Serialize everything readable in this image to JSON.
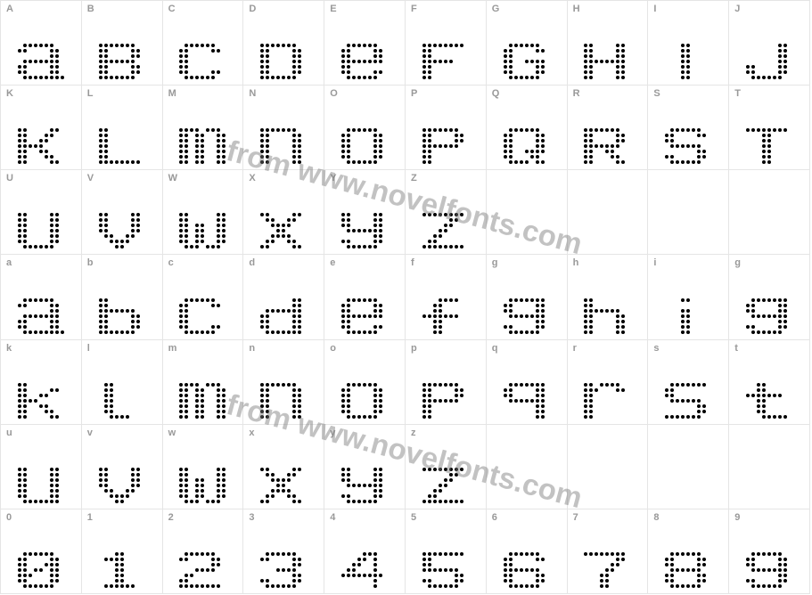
{
  "grid": {
    "cols": 10,
    "rows": 7,
    "cells": [
      {
        "label": "A",
        "glyph": "a"
      },
      {
        "label": "B",
        "glyph": "B"
      },
      {
        "label": "C",
        "glyph": "c"
      },
      {
        "label": "D",
        "glyph": "D"
      },
      {
        "label": "E",
        "glyph": "e"
      },
      {
        "label": "F",
        "glyph": "F"
      },
      {
        "label": "G",
        "glyph": "G"
      },
      {
        "label": "H",
        "glyph": "H"
      },
      {
        "label": "I",
        "glyph": "I"
      },
      {
        "label": "J",
        "glyph": "J"
      },
      {
        "label": "K",
        "glyph": "K"
      },
      {
        "label": "L",
        "glyph": "L"
      },
      {
        "label": "M",
        "glyph": "m"
      },
      {
        "label": "N",
        "glyph": "n"
      },
      {
        "label": "O",
        "glyph": "o"
      },
      {
        "label": "P",
        "glyph": "P"
      },
      {
        "label": "Q",
        "glyph": "Q"
      },
      {
        "label": "R",
        "glyph": "R"
      },
      {
        "label": "S",
        "glyph": "S"
      },
      {
        "label": "T",
        "glyph": "T"
      },
      {
        "label": "U",
        "glyph": "U"
      },
      {
        "label": "V",
        "glyph": "V"
      },
      {
        "label": "W",
        "glyph": "W"
      },
      {
        "label": "X",
        "glyph": "x"
      },
      {
        "label": "Y",
        "glyph": "y"
      },
      {
        "label": "Z",
        "glyph": "Z"
      },
      {
        "label": "",
        "glyph": ""
      },
      {
        "label": "",
        "glyph": ""
      },
      {
        "label": "",
        "glyph": ""
      },
      {
        "label": "",
        "glyph": ""
      },
      {
        "label": "a",
        "glyph": "a"
      },
      {
        "label": "b",
        "glyph": "b"
      },
      {
        "label": "c",
        "glyph": "c"
      },
      {
        "label": "d",
        "glyph": "d"
      },
      {
        "label": "e",
        "glyph": "e"
      },
      {
        "label": "f",
        "glyph": "f"
      },
      {
        "label": "g",
        "glyph": "g"
      },
      {
        "label": "h",
        "glyph": "h"
      },
      {
        "label": "i",
        "glyph": "i"
      },
      {
        "label": "g",
        "glyph": "g"
      },
      {
        "label": "k",
        "glyph": "k"
      },
      {
        "label": "l",
        "glyph": "l"
      },
      {
        "label": "m",
        "glyph": "m"
      },
      {
        "label": "n",
        "glyph": "n"
      },
      {
        "label": "o",
        "glyph": "o"
      },
      {
        "label": "p",
        "glyph": "p"
      },
      {
        "label": "q",
        "glyph": "q"
      },
      {
        "label": "r",
        "glyph": "r"
      },
      {
        "label": "s",
        "glyph": "s"
      },
      {
        "label": "t",
        "glyph": "t"
      },
      {
        "label": "u",
        "glyph": "u"
      },
      {
        "label": "v",
        "glyph": "v"
      },
      {
        "label": "w",
        "glyph": "w"
      },
      {
        "label": "x",
        "glyph": "x"
      },
      {
        "label": "y",
        "glyph": "y"
      },
      {
        "label": "z",
        "glyph": "z"
      },
      {
        "label": "",
        "glyph": ""
      },
      {
        "label": "",
        "glyph": ""
      },
      {
        "label": "",
        "glyph": ""
      },
      {
        "label": "",
        "glyph": ""
      },
      {
        "label": "0",
        "glyph": "0"
      },
      {
        "label": "1",
        "glyph": "1"
      },
      {
        "label": "2",
        "glyph": "2"
      },
      {
        "label": "3",
        "glyph": "3"
      },
      {
        "label": "4",
        "glyph": "4"
      },
      {
        "label": "5",
        "glyph": "5"
      },
      {
        "label": "6",
        "glyph": "6"
      },
      {
        "label": "7",
        "glyph": "7"
      },
      {
        "label": "8",
        "glyph": "8"
      },
      {
        "label": "9",
        "glyph": "9"
      }
    ]
  },
  "watermark_text": "from www.novelfonts.com",
  "watermark_color": "rgba(120,120,120,0.45)",
  "watermark_font_size": 33,
  "dot_patterns": {
    "cols": 9,
    "rows": 7,
    "a": [
      "011111100",
      "110000110",
      "000000110",
      "011111110",
      "110000110",
      "110000110",
      "011111111"
    ],
    "B": [
      "111111100",
      "110000110",
      "110000110",
      "111111100",
      "110000110",
      "110000110",
      "111111100"
    ],
    "b": [
      "110000000",
      "110000000",
      "111111100",
      "110000110",
      "110000110",
      "110000110",
      "111111100"
    ],
    "c": [
      "011111100",
      "110000110",
      "110000000",
      "110000000",
      "110000000",
      "110000110",
      "011111100"
    ],
    "D": [
      "111111100",
      "110000110",
      "110000110",
      "110000110",
      "110000110",
      "110000110",
      "111111100"
    ],
    "d": [
      "000000110",
      "000000110",
      "011111110",
      "110000110",
      "110000110",
      "110000110",
      "011111110"
    ],
    "e": [
      "011111100",
      "110000110",
      "110000110",
      "111111110",
      "110000000",
      "110000110",
      "011111100"
    ],
    "F": [
      "111111110",
      "110000000",
      "110000000",
      "111111000",
      "110000000",
      "110000000",
      "110000000"
    ],
    "f": [
      "000111100",
      "001100000",
      "001100000",
      "111111100",
      "001100000",
      "001100000",
      "001100000"
    ],
    "G": [
      "011111100",
      "110000110",
      "110000000",
      "110011110",
      "110000110",
      "110000110",
      "011111100"
    ],
    "g": [
      "011111110",
      "110000110",
      "110000110",
      "011111110",
      "000000110",
      "110000110",
      "011111100"
    ],
    "H": [
      "110000110",
      "110000110",
      "110000110",
      "111111110",
      "110000110",
      "110000110",
      "110000110"
    ],
    "h": [
      "110000000",
      "110000000",
      "111111100",
      "110000110",
      "110000110",
      "110000110",
      "110000110"
    ],
    "I": [
      "000110000",
      "000110000",
      "000110000",
      "000110000",
      "000110000",
      "000110000",
      "000110000"
    ],
    "i": [
      "000110000",
      "000000000",
      "000110000",
      "000110000",
      "000110000",
      "000110000",
      "000110000"
    ],
    "J": [
      "000000110",
      "000000110",
      "000000110",
      "000000110",
      "110000110",
      "110000110",
      "011111100"
    ],
    "K": [
      "110000110",
      "110001100",
      "110011000",
      "111110000",
      "110011000",
      "110001100",
      "110000110"
    ],
    "k": [
      "110000000",
      "110000110",
      "110011000",
      "111100000",
      "110011000",
      "110001100",
      "110000110"
    ],
    "L": [
      "110000000",
      "110000000",
      "110000000",
      "110000000",
      "110000000",
      "110000000",
      "111111110"
    ],
    "l": [
      "011000000",
      "011000000",
      "011000000",
      "011000000",
      "011000000",
      "011000000",
      "001111000"
    ],
    "m": [
      "111101110",
      "110110011",
      "110110011",
      "110110011",
      "110110011",
      "110110011",
      "110110011"
    ],
    "n": [
      "111111100",
      "110000110",
      "110000110",
      "110000110",
      "110000110",
      "110000110",
      "110000110"
    ],
    "o": [
      "011111100",
      "110000110",
      "110000110",
      "110000110",
      "110000110",
      "110000110",
      "011111100"
    ],
    "P": [
      "111111100",
      "110000110",
      "110000110",
      "111111100",
      "110000000",
      "110000000",
      "110000000"
    ],
    "p": [
      "111111100",
      "110000110",
      "110000110",
      "111111100",
      "110000000",
      "110000000",
      "110000000"
    ],
    "Q": [
      "011111100",
      "110000110",
      "110000110",
      "110000110",
      "110011110",
      "110001100",
      "011110110"
    ],
    "q": [
      "011111110",
      "110000110",
      "110000110",
      "011111110",
      "000000110",
      "000000110",
      "000000110"
    ],
    "R": [
      "111111100",
      "110000110",
      "110000110",
      "111111100",
      "110011000",
      "110001100",
      "110000110"
    ],
    "r": [
      "110111100",
      "111000110",
      "110000000",
      "110000000",
      "110000000",
      "110000000",
      "110000000"
    ],
    "S": [
      "011111100",
      "110000110",
      "110000000",
      "011111100",
      "000000110",
      "110000110",
      "011111100"
    ],
    "s": [
      "011111110",
      "110000000",
      "110000000",
      "011111100",
      "000000110",
      "000000110",
      "111111100"
    ],
    "T": [
      "111111110",
      "000110000",
      "000110000",
      "000110000",
      "000110000",
      "000110000",
      "000110000"
    ],
    "t": [
      "001100000",
      "001100000",
      "111111100",
      "001100000",
      "001100000",
      "001100000",
      "000111110"
    ],
    "U": [
      "110000110",
      "110000110",
      "110000110",
      "110000110",
      "110000110",
      "110000110",
      "011111100"
    ],
    "u": [
      "110000110",
      "110000110",
      "110000110",
      "110000110",
      "110000110",
      "110000110",
      "011111110"
    ],
    "V": [
      "110000110",
      "110000110",
      "110000110",
      "110000110",
      "011001100",
      "001111000",
      "000110000"
    ],
    "v": [
      "110000110",
      "110000110",
      "110000110",
      "110000110",
      "011001100",
      "001111000",
      "000110000"
    ],
    "W": [
      "110000011",
      "110000011",
      "110110011",
      "110110011",
      "110110011",
      "110110011",
      "011101110"
    ],
    "w": [
      "110000011",
      "110000011",
      "110110011",
      "110110011",
      "110110011",
      "110110011",
      "011101110"
    ],
    "x": [
      "110000110",
      "011001100",
      "001111000",
      "000110000",
      "001111000",
      "011001100",
      "110000110"
    ],
    "y": [
      "110000110",
      "110000110",
      "110000110",
      "011111110",
      "000000110",
      "110000110",
      "011111100"
    ],
    "Z": [
      "111111110",
      "000001100",
      "000011000",
      "000110000",
      "001100000",
      "011000000",
      "111111110"
    ],
    "z": [
      "111111110",
      "000001100",
      "000011000",
      "000110000",
      "001100000",
      "011000000",
      "111111110"
    ],
    "0": [
      "011111100",
      "110000110",
      "110001110",
      "110110110",
      "111000110",
      "110000110",
      "011111100"
    ],
    "1": [
      "000110000",
      "011110000",
      "000110000",
      "000110000",
      "000110000",
      "000110000",
      "011111100"
    ],
    "2": [
      "011111100",
      "110000110",
      "000000110",
      "000111100",
      "011000000",
      "110000000",
      "111111110"
    ],
    "3": [
      "011111100",
      "110000110",
      "000000110",
      "000111100",
      "000000110",
      "110000110",
      "011111100"
    ],
    "4": [
      "000011100",
      "000110100",
      "001100100",
      "011000100",
      "111111110",
      "000000100",
      "000000100"
    ],
    "5": [
      "111111110",
      "110000000",
      "110000000",
      "111111100",
      "000000110",
      "110000110",
      "011111100"
    ],
    "6": [
      "011111100",
      "110000110",
      "110000000",
      "111111100",
      "110000110",
      "110000110",
      "011111100"
    ],
    "7": [
      "111111110",
      "000000110",
      "000001100",
      "000011000",
      "000110000",
      "000110000",
      "000110000"
    ],
    "8": [
      "011111100",
      "110000110",
      "110000110",
      "011111100",
      "110000110",
      "110000110",
      "011111100"
    ],
    "9": [
      "011111100",
      "110000110",
      "110000110",
      "011111110",
      "000000110",
      "110000110",
      "011111100"
    ]
  },
  "colors": {
    "border": "#e5e5e5",
    "label_text": "#999999",
    "dot": "#000000",
    "background": "#ffffff"
  }
}
